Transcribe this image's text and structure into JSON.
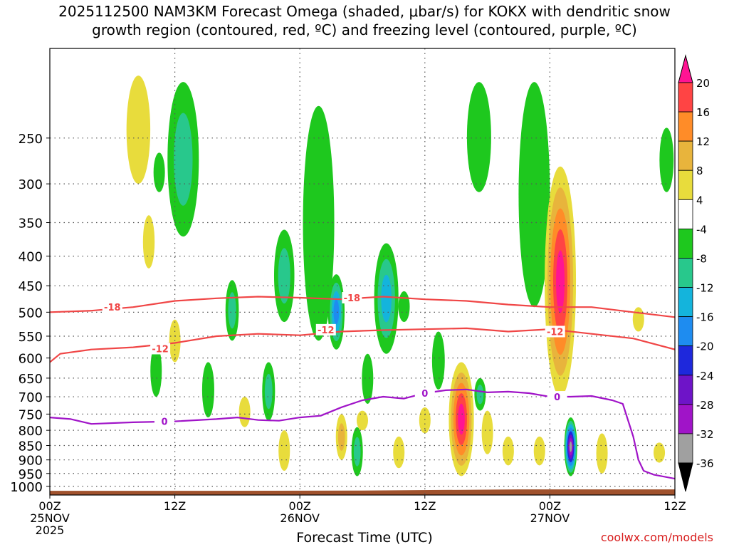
{
  "chart_data": {
    "type": "heatmap",
    "title": "2025112500 NAM3KM Forecast Omega (shaded, μbar/s) for KOKX with dendritic snow",
    "subtitle": "growth region (contoured, red, ºC) and freezing level (contoured, purple, ºC)",
    "xlabel": "Forecast Time (UTC)",
    "ylabel": "",
    "credit": "coolwx.com/models",
    "x_range_hours": [
      0,
      60
    ],
    "y_range_hpa": [
      1035,
      175
    ],
    "x_ticks": [
      {
        "hour": 0,
        "labels": [
          "00Z",
          "25NOV",
          "2025"
        ]
      },
      {
        "hour": 12,
        "labels": [
          "12Z"
        ]
      },
      {
        "hour": 24,
        "labels": [
          "00Z",
          "26NOV"
        ]
      },
      {
        "hour": 36,
        "labels": [
          "12Z"
        ]
      },
      {
        "hour": 48,
        "labels": [
          "00Z",
          "27NOV"
        ]
      },
      {
        "hour": 60,
        "labels": [
          "12Z"
        ]
      }
    ],
    "y_ticks": [
      250,
      300,
      350,
      400,
      450,
      500,
      550,
      600,
      650,
      700,
      750,
      800,
      850,
      900,
      950,
      1000
    ],
    "colorbar": {
      "tick_labels": [
        "20",
        "16",
        "12",
        "8",
        "4",
        "-4",
        "-8",
        "-12",
        "-16",
        "-20",
        "-24",
        "-28",
        "-32",
        "-36"
      ],
      "colors": [
        "#ff1493",
        "#ff4444",
        "#ff8c28",
        "#e8b43c",
        "#e8dc3c",
        "#ffffff",
        "#1ec81e",
        "#28c88c",
        "#14b4dc",
        "#1e8cf0",
        "#1e28dc",
        "#6e14c8",
        "#a014c8",
        "#a0a0a0",
        "#000000"
      ]
    },
    "contour_labels": {
      "dgz_top": "-18",
      "dgz_bottom": "-12",
      "freezing": "0"
    },
    "series": [
      {
        "name": "-18C isotherm (DGZ top)",
        "color": "#f04646",
        "x": [
          0,
          4,
          8,
          12,
          16,
          20,
          24,
          28,
          32,
          36,
          40,
          44,
          48,
          52,
          56,
          60
        ],
        "y": [
          500,
          497,
          490,
          478,
          473,
          470,
          472,
          475,
          470,
          475,
          478,
          485,
          490,
          490,
          500,
          510
        ]
      },
      {
        "name": "-12C isotherm (DGZ bottom)",
        "color": "#f04646",
        "x": [
          0,
          1,
          4,
          8,
          12,
          16,
          20,
          24,
          28,
          32,
          36,
          40,
          44,
          48,
          52,
          56,
          60
        ],
        "y": [
          610,
          590,
          580,
          575,
          565,
          550,
          545,
          548,
          540,
          537,
          535,
          533,
          540,
          535,
          545,
          555,
          580
        ]
      },
      {
        "name": "0C freezing level",
        "color": "#a014c8",
        "x": [
          0,
          2,
          4,
          8,
          12,
          16,
          18,
          20,
          22,
          24,
          26,
          28,
          30,
          32,
          34,
          36,
          38,
          40,
          42,
          44,
          46,
          48,
          50,
          52,
          54,
          55,
          56,
          56.5,
          57,
          58,
          60
        ],
        "y": [
          760,
          765,
          780,
          775,
          772,
          765,
          760,
          768,
          770,
          760,
          755,
          730,
          710,
          700,
          705,
          690,
          682,
          680,
          688,
          686,
          690,
          700,
          700,
          698,
          710,
          720,
          820,
          900,
          940,
          955,
          970
        ]
      }
    ],
    "shaded_cells": [
      {
        "t": 8.5,
        "p_top": 195,
        "p_bot": 300,
        "v": 6
      },
      {
        "t": 10.5,
        "p_top": 265,
        "p_bot": 310,
        "v": -5
      },
      {
        "t": 12.8,
        "p_top": 200,
        "p_bot": 370,
        "v": -10
      },
      {
        "t": 9.5,
        "p_top": 340,
        "p_bot": 420,
        "v": 5
      },
      {
        "t": 10.2,
        "p_top": 570,
        "p_bot": 700,
        "v": -6
      },
      {
        "t": 12.0,
        "p_top": 515,
        "p_bot": 610,
        "v": 6
      },
      {
        "t": 15.2,
        "p_top": 610,
        "p_bot": 760,
        "v": -7
      },
      {
        "t": 17.5,
        "p_top": 440,
        "p_bot": 560,
        "v": -10
      },
      {
        "t": 18.7,
        "p_top": 700,
        "p_bot": 790,
        "v": 6
      },
      {
        "t": 21.0,
        "p_top": 610,
        "p_bot": 770,
        "v": -9
      },
      {
        "t": 22.5,
        "p_top": 360,
        "p_bot": 520,
        "v": -9
      },
      {
        "t": 22.5,
        "p_top": 800,
        "p_bot": 940,
        "v": 6
      },
      {
        "t": 25.8,
        "p_top": 220,
        "p_bot": 560,
        "v": -8
      },
      {
        "t": 27.5,
        "p_top": 430,
        "p_bot": 580,
        "v": -18
      },
      {
        "t": 28.0,
        "p_top": 750,
        "p_bot": 900,
        "v": 9
      },
      {
        "t": 29.5,
        "p_top": 790,
        "p_bot": 960,
        "v": -10
      },
      {
        "t": 30.5,
        "p_top": 590,
        "p_bot": 720,
        "v": -8
      },
      {
        "t": 32.3,
        "p_top": 380,
        "p_bot": 590,
        "v": -14
      },
      {
        "t": 30.0,
        "p_top": 740,
        "p_bot": 800,
        "v": 5
      },
      {
        "t": 33.5,
        "p_top": 820,
        "p_bot": 930,
        "v": 5
      },
      {
        "t": 34.0,
        "p_top": 460,
        "p_bot": 520,
        "v": -6
      },
      {
        "t": 36.0,
        "p_top": 730,
        "p_bot": 810,
        "v": 5
      },
      {
        "t": 37.3,
        "p_top": 540,
        "p_bot": 680,
        "v": -8
      },
      {
        "t": 39.5,
        "p_top": 610,
        "p_bot": 960,
        "v": 22
      },
      {
        "t": 41.3,
        "p_top": 650,
        "p_bot": 740,
        "v": -9
      },
      {
        "t": 42.0,
        "p_top": 740,
        "p_bot": 880,
        "v": 6
      },
      {
        "t": 44.0,
        "p_top": 820,
        "p_bot": 920,
        "v": 5
      },
      {
        "t": 41.2,
        "p_top": 200,
        "p_bot": 310,
        "v": -7
      },
      {
        "t": 46.5,
        "p_top": 200,
        "p_bot": 490,
        "v": -8
      },
      {
        "t": 49.0,
        "p_top": 280,
        "p_bot": 700,
        "v": 24
      },
      {
        "t": 50.0,
        "p_top": 760,
        "p_bot": 960,
        "v": -34
      },
      {
        "t": 47.0,
        "p_top": 820,
        "p_bot": 920,
        "v": 5
      },
      {
        "t": 53.0,
        "p_top": 810,
        "p_bot": 950,
        "v": 5
      },
      {
        "t": 56.5,
        "p_top": 490,
        "p_bot": 540,
        "v": 5
      },
      {
        "t": 58.5,
        "p_top": 840,
        "p_bot": 910,
        "v": 5
      },
      {
        "t": 59.2,
        "p_top": 240,
        "p_bot": 310,
        "v": -5
      }
    ],
    "ground_level_hpa": [
      1018,
      1018,
      1017,
      1012,
      1012
    ]
  }
}
